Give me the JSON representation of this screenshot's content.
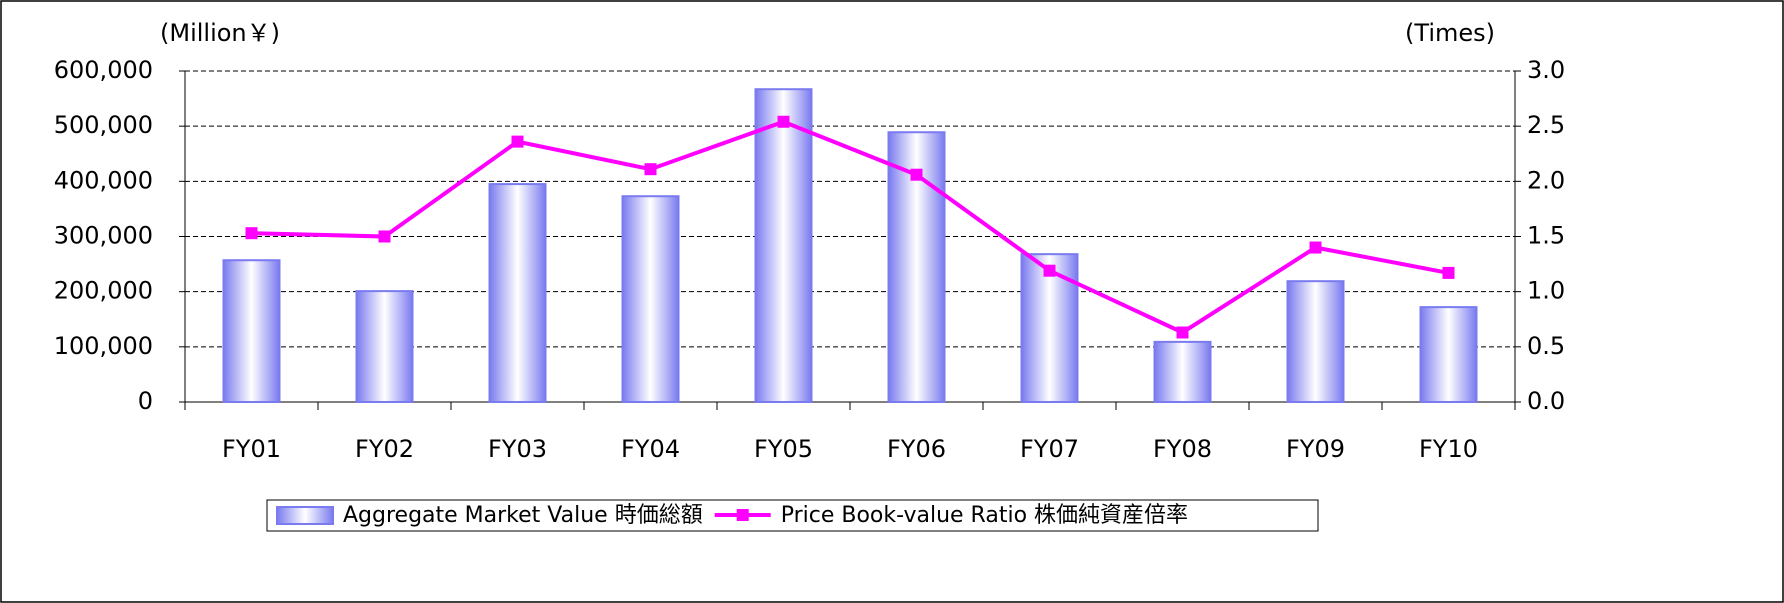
{
  "chart_data": {
    "type": "bar",
    "y_label": "(Million￥)",
    "y2_label": "(Times)",
    "categories": [
      "FY01",
      "FY02",
      "FY03",
      "FY04",
      "FY05",
      "FY06",
      "FY07",
      "FY08",
      "FY09",
      "FY10"
    ],
    "series": [
      {
        "name": "Aggregate Market Value 時価総額",
        "type": "bar",
        "color": "#7b7bf0",
        "values": [
          257000,
          201000,
          395000,
          373000,
          567000,
          489000,
          268000,
          109000,
          219000,
          172000
        ]
      },
      {
        "name": "Price Book-value Ratio 株価純資産倍率",
        "type": "line",
        "color": "#ff00ff",
        "axis": "y2",
        "values": [
          1.53,
          1.5,
          2.36,
          2.11,
          2.54,
          2.06,
          1.19,
          0.63,
          1.4,
          1.17
        ]
      }
    ],
    "ylim": [
      0,
      600000
    ],
    "yticks": [
      0,
      {
        "value": 100000,
        "label": "100,000"
      },
      {
        "value": 200000,
        "label": "200,000"
      },
      {
        "value": 300000,
        "label": "300,000"
      },
      {
        "value": 400000,
        "label": "400,000"
      },
      {
        "value": 500000,
        "label": "500,000"
      },
      {
        "value": 600000,
        "label": "600,000"
      }
    ],
    "y2lim": [
      0,
      3
    ],
    "y2ticks": [
      {
        "value": 0,
        "label": "0.0"
      },
      0.5,
      {
        "value": 1,
        "label": "1.0"
      },
      1.5,
      {
        "value": 2,
        "label": "2.0"
      },
      2.5,
      {
        "value": 3,
        "label": "3.0"
      }
    ],
    "grid": true,
    "legend": "bottom"
  }
}
